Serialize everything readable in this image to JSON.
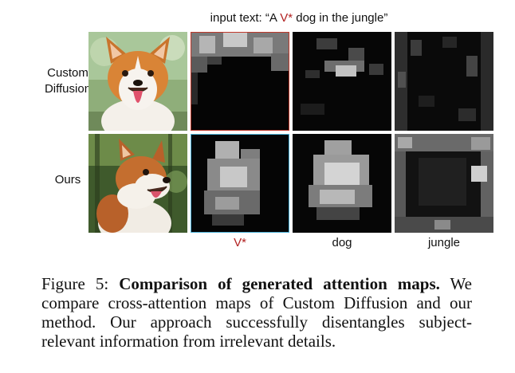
{
  "figure": {
    "header_prefix": "input text: “A ",
    "header_token": "V*",
    "header_suffix": " dog in the jungle”",
    "row_labels": {
      "custom_line1": "Custom",
      "custom_line2": "Diffusion",
      "ours": "Ours"
    },
    "column_labels": {
      "vstar": "V*",
      "dog": "dog",
      "jungle": "jungle"
    },
    "colors": {
      "vstar_text": "#b22222",
      "custom_vstar_border": "#c0392b",
      "ours_vstar_border": "#4fb3d9"
    }
  },
  "caption": {
    "prefix": "Figure 5: ",
    "bold": "Comparison of generated attention maps.",
    "body": " We compare cross-attention maps of Custom Diffusion and our method. Our approach successfully disentangles subject-relevant information from irrelevant details."
  }
}
